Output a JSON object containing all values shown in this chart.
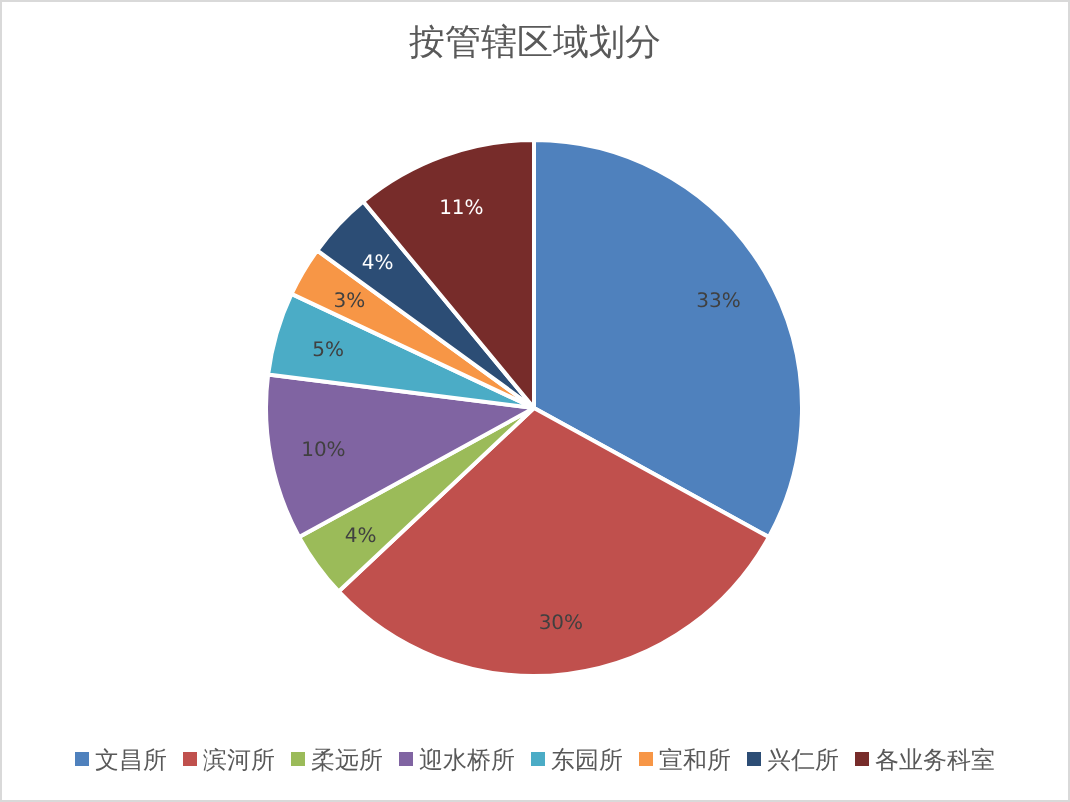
{
  "chart_data": {
    "type": "pie",
    "title": "按管辖区域划分",
    "categories": [
      "文昌所",
      "滨河所",
      "柔远所",
      "迎水桥所",
      "东园所",
      "宣和所",
      "兴仁所",
      "各业务科室"
    ],
    "values": [
      33,
      30,
      4,
      10,
      5,
      3,
      4,
      11
    ],
    "colors": [
      "#4f81bd",
      "#c0504d",
      "#9bbb59",
      "#8064a2",
      "#4bacc6",
      "#f79646",
      "#2c4d75",
      "#772c2a"
    ],
    "value_labels": [
      "33%",
      "30%",
      "4%",
      "10%",
      "5%",
      "3%",
      "4%",
      "11%"
    ],
    "legend": "bottom"
  }
}
